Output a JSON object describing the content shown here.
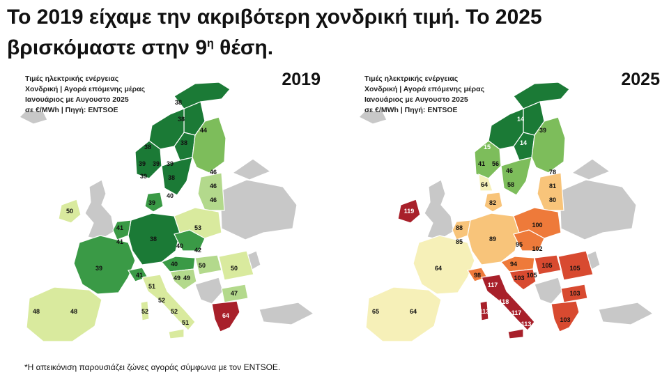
{
  "headline": {
    "line1": "Το 2019 είχαμε την ακριβότερη χονδρική τιμή. Το 2025",
    "line2_a": "βρισκόμαστε στην 9",
    "line2_sup": "η",
    "line2_b": " θέση."
  },
  "source": {
    "line1": "Τιμές ηλεκτρικής ενέργειας",
    "line2": "Χονδρική | Αγορά επόμενης μέρας",
    "line3": "Ιανουάριος με Αυγουστο 2025",
    "line4": "σε €/MWh | Πηγή: ENTSOE"
  },
  "maps": [
    {
      "year": "2019",
      "values": {
        "no_n": "38",
        "no_mid": "38",
        "no_s1": "39",
        "no_s2": "39",
        "no_s3": "39",
        "se1": "38",
        "se2": "38",
        "se3": "39",
        "se4": "38",
        "fi": "44",
        "ee": "46",
        "lv": "46",
        "lt": "46",
        "dk1": "39",
        "dk2": "40",
        "ie": "50",
        "gb": "",
        "fr": "39",
        "be": "41",
        "nl": "41",
        "de": "38",
        "pl": "53",
        "cz": "40",
        "sk": "42",
        "at": "40",
        "ch": "41",
        "hu": "50",
        "si": "49",
        "hr": "49",
        "ro": "50",
        "bg": "47",
        "it_n": "51",
        "it_c1": "52",
        "it_c2": "52",
        "it_s": "51",
        "it_sa": "52",
        "es": "48",
        "pt": "48",
        "gr": "64"
      }
    },
    {
      "year": "2025",
      "values": {
        "no_n": "",
        "no_mid": "15",
        "no_s1": "41",
        "no_s2": "56",
        "no_s3": "64",
        "se1": "14",
        "se2": "14",
        "se3": "46",
        "se4": "58",
        "fi": "39",
        "ee": "78",
        "lv": "81",
        "lt": "80",
        "dk1": "82",
        "dk2": "",
        "ie": "119",
        "gb": "",
        "fr": "64",
        "be": "85",
        "nl": "88",
        "de": "89",
        "pl": "100",
        "cz": "95",
        "sk": "102",
        "at": "94",
        "ch": "98",
        "hu": "105",
        "si": "103",
        "hr": "105",
        "ro": "105",
        "bg": "103",
        "it_n": "117",
        "it_c1": "118",
        "it_c2": "117",
        "it_s": "113",
        "it_sa": "113",
        "es": "64",
        "pt": "65",
        "gr": "103"
      }
    }
  ],
  "footnote": "*Η απεικόνιση παρουσιάζει ζώνες αγοράς σύμφωνα με τον ENTSOE."
}
